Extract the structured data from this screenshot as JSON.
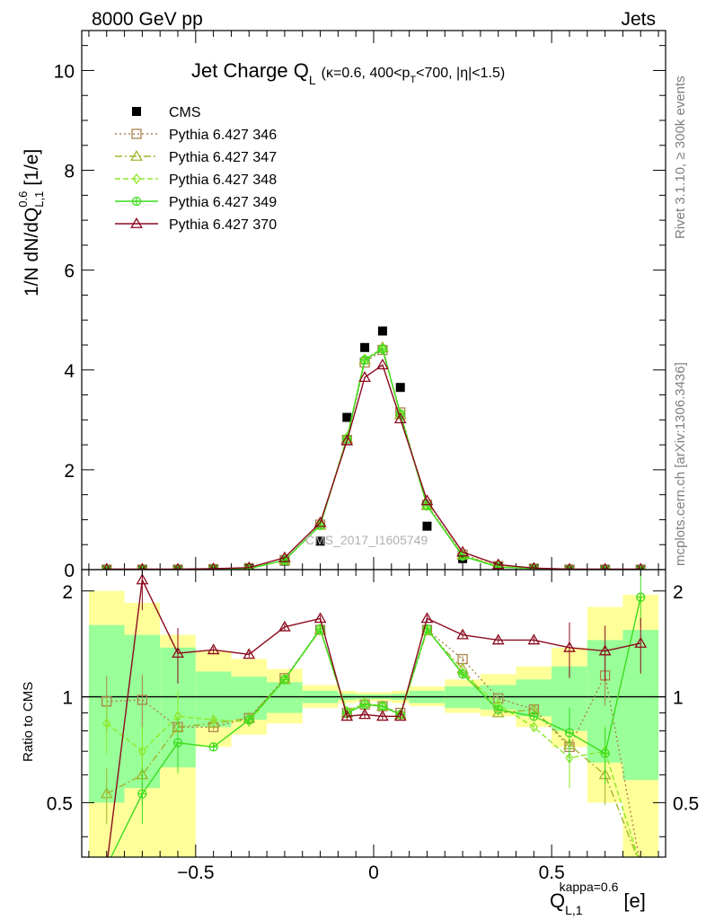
{
  "header": {
    "energy_label": "8000 GeV pp",
    "category_label": "Jets"
  },
  "side_labels": {
    "rivet": "Rivet 3.1.10, ≥ 300k events",
    "mcplots": "mcplots.cern.ch [arXiv:1306.3436]"
  },
  "watermark": "CMS_2017_I1605749",
  "colors": {
    "cms": "#000000",
    "p346": "#a9834c",
    "p347": "#a0b52d",
    "p348": "#8de82a",
    "p349": "#3cdc1e",
    "p370": "#8b0a1e",
    "band_yellow": "#ffff99",
    "band_green": "#99ff99"
  },
  "chart_data": [
    {
      "type": "line",
      "title": "Jet Charge Q",
      "title_sub": "L",
      "title_detail": "(κ=0.6, 400<p",
      "title_detail_sub": "T",
      "title_detail_tail": "<700, |η|<1.5)",
      "ylabel": "1/N dN/dQ",
      "ylabel_sup": "0.6",
      "ylabel_sub": "L,1",
      "ylabel_unit": "[1/e]",
      "xlim": [
        -0.82,
        0.82
      ],
      "ylim": [
        0,
        10.8
      ],
      "yticks": [
        0,
        2,
        4,
        6,
        8,
        10
      ],
      "x": [
        -0.75,
        -0.65,
        -0.55,
        -0.45,
        -0.35,
        -0.25,
        -0.15,
        -0.075,
        -0.025,
        0.025,
        0.075,
        0.15,
        0.25,
        0.35,
        0.45,
        0.55,
        0.65,
        0.75
      ],
      "series": [
        {
          "name": "CMS",
          "key": "cms",
          "marker": "square-filled",
          "values": [
            0.0,
            0.0,
            0.0,
            0.0,
            0.02,
            0.17,
            0.57,
            3.05,
            4.45,
            4.78,
            3.65,
            0.87,
            0.22,
            0.06,
            0.02,
            0.0,
            0.0,
            0.0
          ]
        },
        {
          "name": "Pythia 6.427 346",
          "key": "p346",
          "marker": "square-open",
          "dash": "2,3",
          "values": [
            0.0,
            0.0,
            0.0,
            0.01,
            0.03,
            0.19,
            0.9,
            2.6,
            4.15,
            4.4,
            3.15,
            1.3,
            0.3,
            0.07,
            0.02,
            0.0,
            0.0,
            0.0
          ]
        },
        {
          "name": "Pythia 6.427 347",
          "key": "p347",
          "marker": "triangle-open",
          "dash": "8,3,2,3",
          "values": [
            0.0,
            0.0,
            0.0,
            0.01,
            0.02,
            0.19,
            0.89,
            2.62,
            4.2,
            4.45,
            3.1,
            1.28,
            0.29,
            0.06,
            0.02,
            0.0,
            0.0,
            0.0
          ]
        },
        {
          "name": "Pythia 6.427 348",
          "key": "p348",
          "marker": "diamond-open",
          "dash": "6,3",
          "values": [
            0.0,
            0.0,
            0.0,
            0.01,
            0.02,
            0.19,
            0.89,
            2.65,
            4.22,
            4.42,
            3.12,
            1.28,
            0.28,
            0.06,
            0.02,
            0.0,
            0.0,
            0.0
          ]
        },
        {
          "name": "Pythia 6.427 349",
          "key": "p349",
          "marker": "circle-plus",
          "dash": "",
          "values": [
            0.0,
            0.0,
            0.0,
            0.01,
            0.02,
            0.19,
            0.89,
            2.62,
            4.2,
            4.42,
            3.12,
            1.28,
            0.27,
            0.05,
            0.02,
            0.0,
            0.0,
            0.0
          ]
        },
        {
          "name": "Pythia 6.427 370",
          "key": "p370",
          "marker": "triangle-open",
          "dash": "",
          "values": [
            0.01,
            0.01,
            0.01,
            0.02,
            0.04,
            0.24,
            0.94,
            2.58,
            3.85,
            4.1,
            3.02,
            1.38,
            0.35,
            0.1,
            0.03,
            0.01,
            0.01,
            0.01
          ]
        }
      ]
    },
    {
      "type": "line",
      "ylabel": "Ratio to CMS",
      "xlabel": "Q",
      "xlabel_sup": "kappa=0.6",
      "xlabel_sub": "L,1",
      "xlabel_unit": "[e]",
      "xlim": [
        -0.82,
        0.82
      ],
      "ylim": [
        0.35,
        2.3
      ],
      "log_y": true,
      "xticks": [
        -0.5,
        0,
        0.5
      ],
      "xtick_labels": [
        "−0.5",
        "0",
        "0.5"
      ],
      "yticks": [
        0.5,
        1,
        2
      ],
      "ytick_labels": [
        "0.5",
        "1",
        "2"
      ],
      "bins": [
        -0.8,
        -0.7,
        -0.6,
        -0.5,
        -0.4,
        -0.3,
        -0.2,
        -0.1,
        -0.05,
        0.0,
        0.05,
        0.1,
        0.2,
        0.3,
        0.4,
        0.5,
        0.6,
        0.7,
        0.8
      ],
      "band_yellow": [
        [
          0.33,
          2.0
        ],
        [
          0.33,
          1.85
        ],
        [
          0.33,
          1.5
        ],
        [
          0.72,
          1.35
        ],
        [
          0.78,
          1.28
        ],
        [
          0.84,
          1.2
        ],
        [
          0.93,
          1.08
        ],
        [
          0.96,
          1.04
        ],
        [
          0.97,
          1.03
        ],
        [
          0.97,
          1.03
        ],
        [
          0.96,
          1.04
        ],
        [
          0.94,
          1.07
        ],
        [
          0.9,
          1.12
        ],
        [
          0.88,
          1.16
        ],
        [
          0.82,
          1.22
        ],
        [
          0.72,
          1.38
        ],
        [
          0.5,
          1.8
        ],
        [
          0.33,
          1.95
        ]
      ],
      "band_green": [
        [
          0.5,
          1.6
        ],
        [
          0.55,
          1.5
        ],
        [
          0.63,
          1.38
        ],
        [
          0.82,
          1.18
        ],
        [
          0.86,
          1.14
        ],
        [
          0.9,
          1.1
        ],
        [
          0.96,
          1.04
        ],
        [
          0.98,
          1.02
        ],
        [
          0.985,
          1.015
        ],
        [
          0.985,
          1.015
        ],
        [
          0.98,
          1.02
        ],
        [
          0.96,
          1.04
        ],
        [
          0.93,
          1.07
        ],
        [
          0.92,
          1.08
        ],
        [
          0.88,
          1.12
        ],
        [
          0.8,
          1.22
        ],
        [
          0.65,
          1.45
        ],
        [
          0.58,
          1.55
        ]
      ],
      "x": [
        -0.75,
        -0.65,
        -0.55,
        -0.45,
        -0.35,
        -0.25,
        -0.15,
        -0.075,
        -0.025,
        0.025,
        0.075,
        0.15,
        0.25,
        0.35,
        0.45,
        0.55,
        0.65,
        0.75
      ],
      "series": [
        {
          "name": "Pythia 6.427 346",
          "key": "p346",
          "marker": "square-open",
          "dash": "2,3",
          "values": [
            0.97,
            0.98,
            0.82,
            0.82,
            0.87,
            1.13,
            1.55,
            0.9,
            0.95,
            0.94,
            0.9,
            1.55,
            1.28,
            0.99,
            0.92,
            0.72,
            1.15,
            0.33
          ]
        },
        {
          "name": "Pythia 6.427 347",
          "key": "p347",
          "marker": "triangle-open",
          "dash": "8,3,2,3",
          "values": [
            0.53,
            0.6,
            0.82,
            0.84,
            0.87,
            1.12,
            1.55,
            0.9,
            0.96,
            0.94,
            0.89,
            1.54,
            1.2,
            0.9,
            0.92,
            0.73,
            0.6,
            0.33
          ]
        },
        {
          "name": "Pythia 6.427 348",
          "key": "p348",
          "marker": "diamond-open",
          "dash": "6,3",
          "values": [
            0.84,
            0.7,
            0.88,
            0.86,
            0.85,
            1.12,
            1.55,
            0.91,
            0.96,
            0.94,
            0.89,
            1.55,
            1.17,
            0.95,
            0.82,
            0.67,
            0.7,
            0.33
          ]
        },
        {
          "name": "Pythia 6.427 349",
          "key": "p349",
          "marker": "circle-plus",
          "dash": "",
          "values": [
            0.33,
            0.53,
            0.74,
            0.72,
            0.86,
            1.12,
            1.56,
            0.9,
            0.95,
            0.94,
            0.89,
            1.56,
            1.16,
            0.92,
            0.88,
            0.79,
            0.69,
            1.92
          ]
        },
        {
          "name": "Pythia 6.427 370",
          "key": "p370",
          "marker": "triangle-open",
          "dash": "",
          "values": [
            0.33,
            2.15,
            1.33,
            1.36,
            1.32,
            1.58,
            1.67,
            0.88,
            0.89,
            0.88,
            0.88,
            1.67,
            1.5,
            1.45,
            1.45,
            1.38,
            1.35,
            1.42
          ]
        }
      ]
    }
  ]
}
